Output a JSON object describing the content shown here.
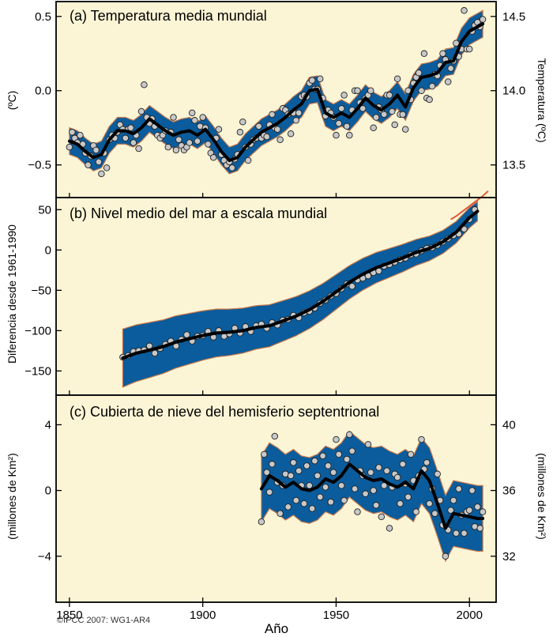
{
  "figure": {
    "xlabel": "Año",
    "credit": "©IPCC 2007: WG1-AR4",
    "x_ticks": [
      1850,
      1900,
      1950,
      2000
    ]
  },
  "colors": {
    "panel_background": "#fbf5d6",
    "uncertainty_band": "#0a5c9c",
    "band_edge": "#c8784a",
    "trend_line": "#000000",
    "observations": "#c8c8c8",
    "satellite_line": "#e05a3a"
  },
  "chart_data": [
    {
      "type": "line",
      "title": "(a) Temperatura media mundial",
      "ylabel": "(ºC)",
      "ylabel_right": "Temperatura (ºC)",
      "xlim": [
        1845,
        2010
      ],
      "ylim": [
        -0.72,
        0.6
      ],
      "y_ticks": [
        {
          "value": 0.5,
          "label": "0.5"
        },
        {
          "value": 0.0,
          "label": "0.0"
        },
        {
          "value": -0.5,
          "label": "−0.5"
        }
      ],
      "y_ticks_right": [
        {
          "value": 0.5,
          "label": "14.5"
        },
        {
          "value": 0.0,
          "label": "14.0"
        },
        {
          "value": -0.5,
          "label": "13.5"
        }
      ],
      "trend_x": [
        1850,
        1853,
        1856,
        1859,
        1862,
        1865,
        1868,
        1871,
        1874,
        1877,
        1880,
        1883,
        1886,
        1889,
        1892,
        1895,
        1898,
        1901,
        1904,
        1907,
        1910,
        1913,
        1916,
        1919,
        1922,
        1925,
        1928,
        1931,
        1934,
        1937,
        1940,
        1943,
        1946,
        1949,
        1952,
        1955,
        1958,
        1961,
        1964,
        1967,
        1970,
        1973,
        1976,
        1979,
        1982,
        1985,
        1988,
        1991,
        1994,
        1997,
        2000,
        2003,
        2005
      ],
      "trend_y": [
        -0.34,
        -0.36,
        -0.41,
        -0.45,
        -0.43,
        -0.33,
        -0.27,
        -0.27,
        -0.29,
        -0.25,
        -0.19,
        -0.23,
        -0.27,
        -0.3,
        -0.28,
        -0.27,
        -0.3,
        -0.26,
        -0.33,
        -0.41,
        -0.47,
        -0.45,
        -0.38,
        -0.33,
        -0.28,
        -0.25,
        -0.22,
        -0.18,
        -0.13,
        -0.09,
        0.0,
        0.01,
        -0.15,
        -0.18,
        -0.15,
        -0.18,
        -0.12,
        -0.05,
        -0.1,
        -0.13,
        -0.09,
        -0.03,
        -0.11,
        0.02,
        0.09,
        0.1,
        0.12,
        0.19,
        0.2,
        0.33,
        0.4,
        0.43,
        0.45
      ],
      "band_halfwidth": 0.09,
      "obs_x": [
        1850,
        1851,
        1852,
        1853,
        1854,
        1855,
        1856,
        1857,
        1858,
        1859,
        1860,
        1861,
        1862,
        1863,
        1864,
        1865,
        1866,
        1867,
        1868,
        1869,
        1870,
        1871,
        1872,
        1873,
        1874,
        1875,
        1876,
        1877,
        1878,
        1879,
        1880,
        1881,
        1882,
        1883,
        1884,
        1885,
        1886,
        1887,
        1888,
        1889,
        1890,
        1891,
        1892,
        1893,
        1894,
        1895,
        1896,
        1897,
        1898,
        1899,
        1900,
        1901,
        1902,
        1903,
        1904,
        1905,
        1906,
        1907,
        1908,
        1909,
        1910,
        1911,
        1912,
        1913,
        1914,
        1915,
        1916,
        1917,
        1918,
        1919,
        1920,
        1921,
        1922,
        1923,
        1924,
        1925,
        1926,
        1927,
        1928,
        1929,
        1930,
        1931,
        1932,
        1933,
        1934,
        1935,
        1936,
        1937,
        1938,
        1939,
        1940,
        1941,
        1942,
        1943,
        1944,
        1945,
        1946,
        1947,
        1948,
        1949,
        1950,
        1951,
        1952,
        1953,
        1954,
        1955,
        1956,
        1957,
        1958,
        1959,
        1960,
        1961,
        1962,
        1963,
        1964,
        1965,
        1966,
        1967,
        1968,
        1969,
        1970,
        1971,
        1972,
        1973,
        1974,
        1975,
        1976,
        1977,
        1978,
        1979,
        1980,
        1981,
        1982,
        1983,
        1984,
        1985,
        1986,
        1987,
        1988,
        1989,
        1990,
        1991,
        1992,
        1993,
        1994,
        1995,
        1996,
        1997,
        1998,
        1999,
        2000,
        2001,
        2002,
        2003,
        2004,
        2005
      ],
      "obs_y": [
        -0.38,
        -0.28,
        -0.32,
        -0.35,
        -0.3,
        -0.36,
        -0.42,
        -0.5,
        -0.44,
        -0.37,
        -0.4,
        -0.48,
        -0.56,
        -0.42,
        -0.52,
        -0.33,
        -0.3,
        -0.32,
        -0.28,
        -0.23,
        -0.26,
        -0.32,
        -0.26,
        -0.25,
        -0.35,
        -0.3,
        -0.39,
        -0.14,
        0.04,
        -0.18,
        -0.22,
        -0.19,
        -0.24,
        -0.3,
        -0.32,
        -0.3,
        -0.27,
        -0.38,
        -0.28,
        -0.18,
        -0.4,
        -0.33,
        -0.37,
        -0.4,
        -0.38,
        -0.35,
        -0.15,
        -0.2,
        -0.34,
        -0.24,
        -0.18,
        -0.25,
        -0.36,
        -0.42,
        -0.45,
        -0.32,
        -0.26,
        -0.43,
        -0.47,
        -0.5,
        -0.48,
        -0.52,
        -0.46,
        -0.43,
        -0.28,
        -0.21,
        -0.38,
        -0.47,
        -0.36,
        -0.33,
        -0.32,
        -0.24,
        -0.32,
        -0.3,
        -0.31,
        -0.23,
        -0.16,
        -0.25,
        -0.26,
        -0.33,
        -0.12,
        -0.13,
        -0.16,
        -0.29,
        -0.15,
        -0.2,
        -0.15,
        -0.04,
        -0.03,
        -0.04,
        0.05,
        0.07,
        0.01,
        0.01,
        0.08,
        -0.05,
        -0.17,
        -0.13,
        -0.15,
        -0.18,
        -0.3,
        -0.22,
        -0.12,
        -0.03,
        -0.24,
        -0.3,
        -0.13,
        0.0,
        0.0,
        -0.08,
        -0.12,
        -0.05,
        -0.03,
        0.0,
        -0.25,
        -0.18,
        -0.11,
        -0.13,
        -0.16,
        -0.03,
        -0.03,
        -0.14,
        -0.23,
        0.08,
        -0.16,
        -0.16,
        -0.26,
        0.0,
        -0.06,
        0.05,
        0.09,
        0.12,
        0.0,
        0.25,
        -0.05,
        -0.06,
        0.03,
        0.11,
        0.1,
        0.17,
        0.25,
        0.21,
        0.06,
        0.15,
        0.2,
        0.32,
        0.23,
        0.28,
        0.54,
        0.28,
        0.28,
        0.4,
        0.44,
        0.46,
        0.43,
        0.48
      ]
    },
    {
      "type": "line",
      "title": "(b) Nivel medio del mar a escala mundial",
      "ylabel": "Diferencia desde 1961-1990",
      "xlim": [
        1845,
        2010
      ],
      "ylim": [
        -180,
        65
      ],
      "y_ticks": [
        {
          "value": 50,
          "label": "50"
        },
        {
          "value": 0,
          "label": "0"
        },
        {
          "value": -50,
          "label": "−50"
        },
        {
          "value": -100,
          "label": "−100"
        },
        {
          "value": -150,
          "label": "−150"
        }
      ],
      "trend_x": [
        1870,
        1875,
        1880,
        1885,
        1890,
        1895,
        1900,
        1905,
        1910,
        1915,
        1920,
        1925,
        1930,
        1935,
        1940,
        1945,
        1950,
        1955,
        1960,
        1965,
        1970,
        1975,
        1980,
        1985,
        1990,
        1995,
        2000,
        2003
      ],
      "trend_y": [
        -134,
        -128,
        -124,
        -120,
        -114,
        -110,
        -106,
        -103,
        -102,
        -100,
        -96,
        -94,
        -88,
        -82,
        -74,
        -64,
        -52,
        -40,
        -30,
        -22,
        -16,
        -10,
        -3,
        2,
        10,
        22,
        40,
        48
      ],
      "band_halfwidth_start": 36,
      "band_halfwidth_end": 12,
      "satellite_x": [
        1993,
        1995,
        1997,
        1999,
        2001,
        2003,
        2005,
        2007
      ],
      "satellite_y": [
        38,
        42,
        47,
        52,
        57,
        62,
        67,
        73
      ],
      "obs_x": [
        1870,
        1872,
        1874,
        1876,
        1878,
        1880,
        1882,
        1884,
        1886,
        1888,
        1890,
        1892,
        1894,
        1896,
        1898,
        1900,
        1902,
        1904,
        1906,
        1908,
        1910,
        1912,
        1914,
        1916,
        1918,
        1920,
        1922,
        1924,
        1926,
        1928,
        1930,
        1932,
        1934,
        1936,
        1938,
        1940,
        1942,
        1944,
        1946,
        1948,
        1950,
        1952,
        1954,
        1956,
        1958,
        1960,
        1962,
        1964,
        1966,
        1968,
        1970,
        1972,
        1974,
        1976,
        1978,
        1980,
        1982,
        1984,
        1986,
        1988,
        1990,
        1992,
        1994,
        1996,
        1998,
        2000,
        2002
      ],
      "obs_y": [
        -133,
        -131,
        -126,
        -125,
        -124,
        -119,
        -128,
        -122,
        -117,
        -113,
        -119,
        -111,
        -105,
        -113,
        -107,
        -106,
        -101,
        -108,
        -100,
        -107,
        -104,
        -97,
        -103,
        -95,
        -101,
        -94,
        -92,
        -97,
        -90,
        -93,
        -87,
        -86,
        -81,
        -84,
        -78,
        -76,
        -72,
        -66,
        -62,
        -57,
        -54,
        -48,
        -42,
        -45,
        -37,
        -35,
        -32,
        -28,
        -26,
        -20,
        -18,
        -15,
        -12,
        -10,
        -6,
        -5,
        -1,
        2,
        3,
        6,
        10,
        14,
        18,
        20,
        26,
        38,
        50
      ]
    },
    {
      "type": "line",
      "title": "(c) Cubierta de nieve del hemisferio septentrional",
      "ylabel": "(millones de Km²)",
      "ylabel_right": "(millones de Km²)",
      "xlim": [
        1845,
        2010
      ],
      "ylim": [
        -6.8,
        5.8
      ],
      "y_ticks": [
        {
          "value": 4,
          "label": "4"
        },
        {
          "value": 0,
          "label": "0"
        },
        {
          "value": -4,
          "label": "−4"
        }
      ],
      "y_ticks_right": [
        {
          "value": 4,
          "label": "40"
        },
        {
          "value": 0,
          "label": "36"
        },
        {
          "value": -4,
          "label": "32"
        }
      ],
      "trend_x": [
        1922,
        1925,
        1928,
        1931,
        1934,
        1937,
        1940,
        1943,
        1946,
        1949,
        1952,
        1955,
        1958,
        1961,
        1964,
        1967,
        1970,
        1973,
        1976,
        1979,
        1982,
        1985,
        1988,
        1991,
        1994,
        1997,
        2000,
        2003,
        2005
      ],
      "trend_y": [
        0.1,
        0.9,
        0.6,
        0.2,
        0.5,
        0.1,
        0.0,
        0.2,
        0.7,
        0.5,
        0.9,
        1.6,
        1.2,
        0.8,
        0.6,
        0.7,
        0.4,
        0.2,
        0.5,
        0.1,
        1.2,
        0.6,
        -0.8,
        -2.3,
        -1.4,
        -1.5,
        -1.6,
        -1.7,
        -1.7
      ],
      "band_halfwidth": 2.0,
      "obs_x": [
        1922,
        1923,
        1924,
        1925,
        1926,
        1927,
        1928,
        1929,
        1930,
        1931,
        1932,
        1933,
        1934,
        1935,
        1936,
        1937,
        1938,
        1939,
        1940,
        1941,
        1942,
        1943,
        1944,
        1945,
        1946,
        1947,
        1948,
        1949,
        1950,
        1951,
        1952,
        1953,
        1954,
        1955,
        1956,
        1957,
        1958,
        1959,
        1960,
        1961,
        1962,
        1963,
        1964,
        1965,
        1966,
        1967,
        1968,
        1969,
        1970,
        1971,
        1972,
        1973,
        1974,
        1975,
        1976,
        1977,
        1978,
        1979,
        1980,
        1981,
        1982,
        1983,
        1984,
        1985,
        1986,
        1987,
        1988,
        1989,
        1990,
        1991,
        1992,
        1993,
        1994,
        1995,
        1996,
        1997,
        1998,
        1999,
        2000,
        2001,
        2002,
        2003,
        2004,
        2005
      ],
      "obs_y": [
        -1.9,
        2.2,
        1.1,
        -0.1,
        1.6,
        3.3,
        0.5,
        -1.4,
        0.3,
        1.0,
        -1.0,
        0.9,
        1.7,
        -0.6,
        1.2,
        0.3,
        -0.8,
        1.5,
        0.3,
        -1.1,
        1.8,
        0.9,
        -0.4,
        2.1,
        0.2,
        1.5,
        -0.7,
        1.1,
        3.1,
        2.2,
        0.3,
        -0.6,
        1.9,
        3.4,
        2.4,
        0.1,
        -1.3,
        1.2,
        0.9,
        -0.2,
        2.8,
        1.1,
        0.0,
        -0.9,
        1.4,
        -1.6,
        0.3,
        1.2,
        -2.3,
        0.2,
        1.0,
        0.8,
        -0.8,
        1.6,
        0.4,
        -0.4,
        2.2,
        0.6,
        -1.3,
        0.9,
        3.1,
        1.3,
        1.7,
        -0.8,
        0.1,
        -1.4,
        1.0,
        -0.6,
        -2.1,
        -4.0,
        -2.4,
        -1.2,
        -0.6,
        -2.6,
        0.1,
        -1.5,
        -2.6,
        -1.3,
        -1.2,
        0.0,
        -2.2,
        -1.0,
        -2.3,
        -1.3
      ]
    }
  ]
}
